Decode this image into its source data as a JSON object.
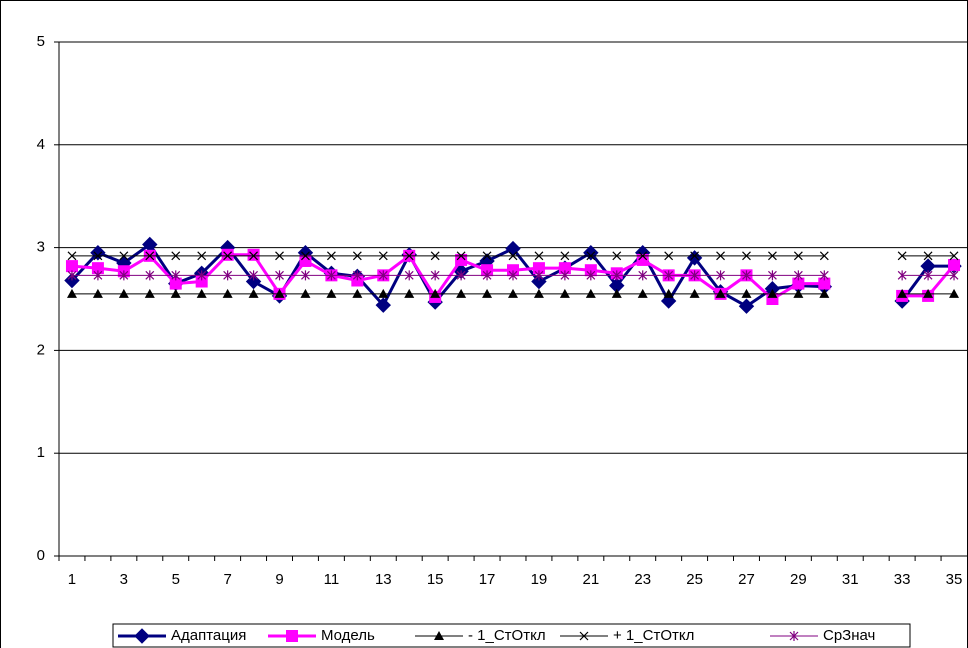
{
  "chart_data": {
    "type": "line",
    "categories": [
      "1",
      null,
      "3",
      null,
      "5",
      null,
      "7",
      null,
      "9",
      null,
      "11",
      null,
      "13",
      null,
      "15",
      null,
      "17",
      null,
      "19",
      null,
      "21",
      null,
      "23",
      null,
      "25",
      null,
      "27",
      null,
      "29",
      null,
      "31",
      null,
      "33",
      null,
      "35"
    ],
    "ylim": [
      0,
      5
    ],
    "yticks": [
      0,
      1,
      2,
      3,
      4,
      5
    ],
    "grid": true,
    "legend": "bottom",
    "series": [
      {
        "name": "Адаптация",
        "color": "#000080",
        "marker": "diamond",
        "width": 3,
        "values": [
          2.68,
          2.95,
          2.85,
          3.03,
          2.65,
          2.75,
          3.0,
          2.67,
          2.53,
          2.95,
          2.75,
          2.72,
          2.44,
          2.93,
          2.47,
          2.77,
          2.87,
          2.99,
          2.67,
          2.8,
          2.95,
          2.63,
          2.95,
          2.48,
          2.9,
          2.57,
          2.43,
          2.6,
          2.63,
          2.62,
          null,
          null,
          2.48,
          2.82,
          2.82
        ]
      },
      {
        "name": "Модель",
        "color": "#ff00ff",
        "marker": "square",
        "width": 3,
        "values": [
          2.82,
          2.8,
          2.77,
          2.92,
          2.65,
          2.67,
          2.93,
          2.93,
          2.55,
          2.87,
          2.73,
          2.68,
          2.73,
          2.92,
          2.52,
          2.88,
          2.78,
          2.78,
          2.8,
          2.8,
          2.78,
          2.75,
          2.88,
          2.73,
          2.73,
          2.55,
          2.73,
          2.5,
          2.65,
          2.65,
          null,
          null,
          2.53,
          2.53,
          2.83
        ]
      },
      {
        "name": "- 1_СтОткл",
        "color": "#000000",
        "marker": "triangle",
        "width": 1,
        "values": [
          2.55,
          2.55,
          2.55,
          2.55,
          2.55,
          2.55,
          2.55,
          2.55,
          2.55,
          2.55,
          2.55,
          2.55,
          2.55,
          2.55,
          2.55,
          2.55,
          2.55,
          2.55,
          2.55,
          2.55,
          2.55,
          2.55,
          2.55,
          2.55,
          2.55,
          2.55,
          2.55,
          2.55,
          2.55,
          2.55,
          null,
          null,
          2.55,
          2.55,
          2.55
        ]
      },
      {
        "name": "+ 1_СтОткл",
        "color": "#000000",
        "marker": "x",
        "width": 1,
        "values": [
          2.92,
          2.92,
          2.92,
          2.92,
          2.92,
          2.92,
          2.92,
          2.92,
          2.92,
          2.92,
          2.92,
          2.92,
          2.92,
          2.92,
          2.92,
          2.92,
          2.92,
          2.92,
          2.92,
          2.92,
          2.92,
          2.92,
          2.92,
          2.92,
          2.92,
          2.92,
          2.92,
          2.92,
          2.92,
          2.92,
          null,
          null,
          2.92,
          2.92,
          2.92
        ]
      },
      {
        "name": "СрЗнач",
        "color": "#800080",
        "marker": "star",
        "width": 1,
        "values": [
          2.73,
          2.73,
          2.73,
          2.73,
          2.73,
          2.73,
          2.73,
          2.73,
          2.73,
          2.73,
          2.73,
          2.73,
          2.73,
          2.73,
          2.73,
          2.73,
          2.73,
          2.73,
          2.73,
          2.73,
          2.73,
          2.73,
          2.73,
          2.73,
          2.73,
          2.73,
          2.73,
          2.73,
          2.73,
          2.73,
          null,
          null,
          2.73,
          2.73,
          2.73
        ]
      }
    ]
  }
}
